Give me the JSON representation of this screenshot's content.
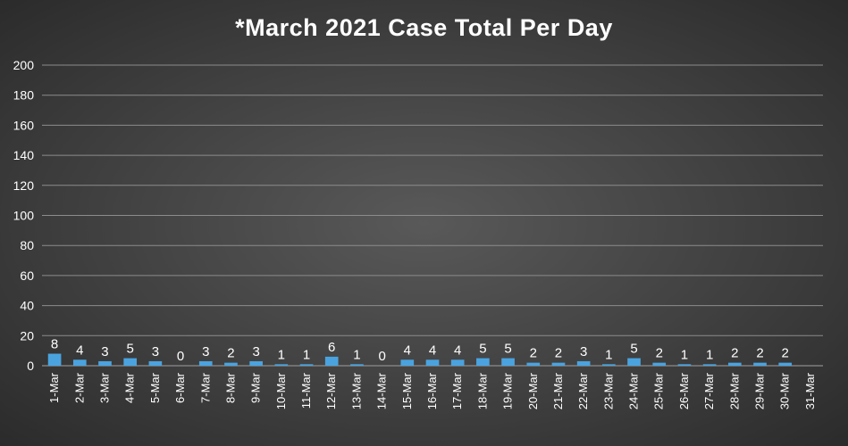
{
  "chart_data": {
    "type": "bar",
    "title": "*March 2021 Case Total Per Day",
    "xlabel": "",
    "ylabel": "",
    "ylim": [
      0,
      200
    ],
    "ytick_step": 20,
    "grid": true,
    "categories": [
      "1-Mar",
      "2-Mar",
      "3-Mar",
      "4-Mar",
      "5-Mar",
      "6-Mar",
      "7-Mar",
      "8-Mar",
      "9-Mar",
      "10-Mar",
      "11-Mar",
      "12-Mar",
      "13-Mar",
      "14-Mar",
      "15-Mar",
      "16-Mar",
      "17-Mar",
      "18-Mar",
      "19-Mar",
      "20-Mar",
      "21-Mar",
      "22-Mar",
      "23-Mar",
      "24-Mar",
      "25-Mar",
      "26-Mar",
      "27-Mar",
      "28-Mar",
      "29-Mar",
      "30-Mar",
      "31-Mar"
    ],
    "values": [
      8,
      4,
      3,
      5,
      3,
      0,
      3,
      2,
      3,
      1,
      1,
      6,
      1,
      0,
      4,
      4,
      4,
      5,
      5,
      2,
      2,
      3,
      1,
      5,
      2,
      1,
      1,
      2,
      2,
      2,
      null
    ],
    "colors": {
      "bar": "#4aa3df",
      "grid": "#8c8c8c",
      "text": "#ffffff"
    }
  }
}
